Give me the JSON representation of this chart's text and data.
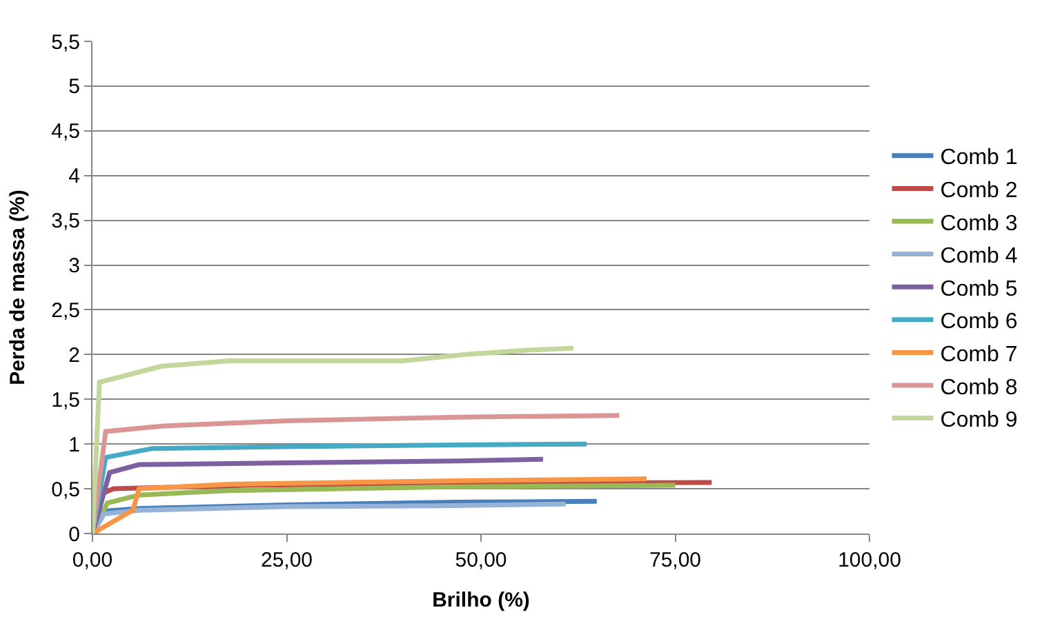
{
  "chart_data": {
    "type": "line",
    "xlabel": "Brilho (%)",
    "ylabel": "Perda de massa (%)",
    "xlim": [
      0,
      100
    ],
    "xticks": [
      {
        "value": 0,
        "label": "0,00"
      },
      {
        "value": 25,
        "label": "25,00"
      },
      {
        "value": 50,
        "label": "50,00"
      },
      {
        "value": 75,
        "label": "75,00"
      },
      {
        "value": 100,
        "label": "100,00"
      }
    ],
    "ylim": [
      0,
      5.5
    ],
    "yticks": [
      0,
      {
        "value": 0.5,
        "label": "0,5"
      },
      1,
      {
        "value": 1.5,
        "label": "1,5"
      },
      2,
      {
        "value": 2.5,
        "label": "2,5"
      },
      3,
      {
        "value": 3.5,
        "label": "3,5"
      },
      4,
      {
        "value": 4.5,
        "label": "4,5"
      },
      5,
      {
        "value": 5.5,
        "label": "5,5"
      }
    ],
    "grid": "y",
    "legend": "right",
    "marker": "none",
    "line_style": "solid",
    "series": [
      {
        "name": "Comb 1",
        "color": "#4a7ebb",
        "x": [
          0,
          1.5,
          6,
          25,
          47,
          64.9
        ],
        "values": [
          0,
          0.25,
          0.28,
          0.32,
          0.35,
          0.36
        ]
      },
      {
        "name": "Comb 2",
        "color": "#be4b48",
        "x": [
          0,
          2.7,
          20,
          47,
          79.7
        ],
        "values": [
          0.4,
          0.5,
          0.54,
          0.56,
          0.57
        ]
      },
      {
        "name": "Comb 3",
        "color": "#98b954",
        "x": [
          0,
          1.9,
          6,
          17.6,
          45,
          75
        ],
        "values": [
          0,
          0.34,
          0.43,
          0.48,
          0.52,
          0.54
        ]
      },
      {
        "name": "Comb 4",
        "color": "#95b3d7",
        "x": [
          0,
          1.5,
          6,
          25,
          45,
          60.9
        ],
        "values": [
          0,
          0.22,
          0.26,
          0.3,
          0.31,
          0.33
        ]
      },
      {
        "name": "Comb 5",
        "color": "#7d60a0",
        "x": [
          0,
          2.2,
          6,
          25,
          47,
          58
        ],
        "values": [
          0,
          0.68,
          0.77,
          0.79,
          0.81,
          0.83
        ]
      },
      {
        "name": "Comb 6",
        "color": "#46aac5",
        "x": [
          0,
          1.7,
          7.7,
          25,
          47,
          63.6
        ],
        "values": [
          0,
          0.85,
          0.95,
          0.97,
          0.99,
          1.0
        ]
      },
      {
        "name": "Comb 7",
        "color": "#f79646",
        "x": [
          0,
          5.2,
          6,
          17.6,
          47,
          71.3
        ],
        "values": [
          0,
          0.26,
          0.5,
          0.55,
          0.59,
          0.61
        ]
      },
      {
        "name": "Comb 8",
        "color": "#d99694",
        "x": [
          0,
          1.7,
          8.9,
          25,
          47,
          67.8
        ],
        "values": [
          0,
          1.14,
          1.2,
          1.26,
          1.3,
          1.32
        ]
      },
      {
        "name": "Comb 9",
        "color": "#c3d69b",
        "x": [
          0,
          0.9,
          8.9,
          17.6,
          40,
          48,
          56,
          61.9
        ],
        "values": [
          0,
          1.69,
          1.87,
          1.93,
          1.93,
          2.0,
          2.05,
          2.07
        ]
      }
    ]
  }
}
